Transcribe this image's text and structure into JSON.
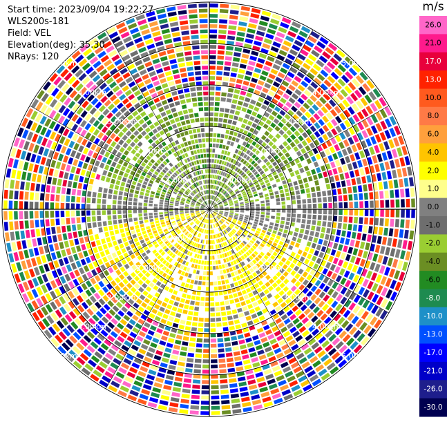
{
  "header": {
    "start_time": "Start time: 2023/09/04 19:22:27",
    "instrument": "WLS200s-181",
    "field": "Field: VEL",
    "elevation": "Elevation(deg): 35.30",
    "nrays": "NRays: 120"
  },
  "colorbar": {
    "unit": "m/s",
    "ticks": [
      "26.0",
      "21.0",
      "17.0",
      "13.0",
      "10.0",
      "8.0",
      "6.0",
      "4.0",
      "2.0",
      "1.0",
      "0.0",
      "-1.0",
      "-2.0",
      "-4.0",
      "-6.0",
      "-8.0",
      "-10.0",
      "-13.0",
      "-17.0",
      "-21.0",
      "-26.0",
      "-30.0"
    ],
    "colors": [
      "#ff66c8",
      "#ff1a8c",
      "#e8003c",
      "#ff2200",
      "#ff5a1e",
      "#ff7a46",
      "#ffa03c",
      "#ffc400",
      "#ffff00",
      "#ffff8c",
      "#808080",
      "#6e6e6e",
      "#9acd32",
      "#6b8e23",
      "#228b22",
      "#1e8b50",
      "#1e90c8",
      "#0050ff",
      "#0000ff",
      "#0000c8",
      "#1e1e8c",
      "#000050"
    ]
  },
  "chart_data": {
    "type": "ppi",
    "nrays": 120,
    "range_rings_km": [
      1,
      2,
      3,
      4,
      5
    ],
    "ring_labels": [
      "1.00km",
      "2.00km",
      "3.00km",
      "4.00km",
      "5.00km"
    ],
    "range_max_km": 5.0,
    "value_unit": "m/s",
    "vmin": -30.0,
    "vmax": 26.0,
    "zones": [
      {
        "region": "north",
        "range_km": [
          0,
          2.9
        ],
        "dominant": "-2.0 to -4.0"
      },
      {
        "region": "south",
        "range_km": [
          0,
          2.7
        ],
        "dominant": "2.0 to 4.0"
      },
      {
        "region": "east-west",
        "range_km": [
          0,
          3.0
        ],
        "dominant": "0.0"
      },
      {
        "region": "outer",
        "range_km": [
          2.9,
          5.0
        ],
        "dominant": "noise"
      }
    ]
  }
}
